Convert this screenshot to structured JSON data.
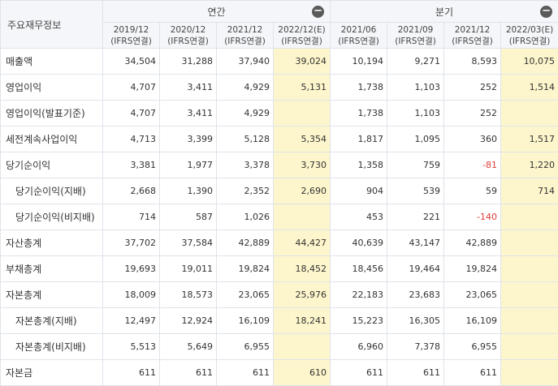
{
  "table": {
    "corner_label": "주요재무정보",
    "groups": [
      {
        "label": "연간",
        "collapse_icon": "minus-circle-icon",
        "collapse_symbol": "−"
      },
      {
        "label": "분기",
        "collapse_icon": "minus-circle-icon",
        "collapse_symbol": "−"
      }
    ],
    "columns": [
      {
        "period": "2019/12",
        "basis": "(IFRS연결)"
      },
      {
        "period": "2020/12",
        "basis": "(IFRS연결)"
      },
      {
        "period": "2021/12",
        "basis": "(IFRS연결)"
      },
      {
        "period": "2022/12(E)",
        "basis": "(IFRS연결)"
      },
      {
        "period": "2021/06",
        "basis": "(IFRS연결)"
      },
      {
        "period": "2021/09",
        "basis": "(IFRS연결)"
      },
      {
        "period": "2021/12",
        "basis": "(IFRS연결)"
      },
      {
        "period": "2022/03(E)",
        "basis": "(IFRS연결)"
      }
    ],
    "estimate_columns": [
      3,
      7
    ],
    "colors": {
      "estimate_bg": "#fdf6cc",
      "negative": "#e03c3c",
      "header_bg": "#f4f6f9",
      "border": "#dfe3ea"
    },
    "rows": [
      {
        "label": "매출액",
        "sub": false,
        "values": [
          "34,504",
          "31,288",
          "37,940",
          "39,024",
          "10,194",
          "9,271",
          "8,593",
          "10,075"
        ]
      },
      {
        "label": "영업이익",
        "sub": false,
        "values": [
          "4,707",
          "3,411",
          "4,929",
          "5,131",
          "1,738",
          "1,103",
          "252",
          "1,514"
        ]
      },
      {
        "label": "영업이익(발표기준)",
        "sub": false,
        "values": [
          "4,707",
          "3,411",
          "4,929",
          "",
          "1,738",
          "1,103",
          "252",
          ""
        ]
      },
      {
        "label": "세전계속사업이익",
        "sub": false,
        "values": [
          "4,713",
          "3,399",
          "5,128",
          "5,354",
          "1,817",
          "1,095",
          "360",
          "1,517"
        ]
      },
      {
        "label": "당기순이익",
        "sub": false,
        "values": [
          "3,381",
          "1,977",
          "3,378",
          "3,730",
          "1,358",
          "759",
          "-81",
          "1,220"
        ]
      },
      {
        "label": "당기순이익(지배)",
        "sub": true,
        "values": [
          "2,668",
          "1,390",
          "2,352",
          "2,690",
          "904",
          "539",
          "59",
          "714"
        ]
      },
      {
        "label": "당기순이익(비지배)",
        "sub": true,
        "values": [
          "714",
          "587",
          "1,026",
          "",
          "453",
          "221",
          "-140",
          ""
        ]
      },
      {
        "label": "자산총계",
        "sub": false,
        "values": [
          "37,702",
          "37,584",
          "42,889",
          "44,427",
          "40,639",
          "43,147",
          "42,889",
          ""
        ]
      },
      {
        "label": "부채총계",
        "sub": false,
        "values": [
          "19,693",
          "19,011",
          "19,824",
          "18,452",
          "18,456",
          "19,464",
          "19,824",
          ""
        ]
      },
      {
        "label": "자본총계",
        "sub": false,
        "values": [
          "18,009",
          "18,573",
          "23,065",
          "25,976",
          "22,183",
          "23,683",
          "23,065",
          ""
        ]
      },
      {
        "label": "자본총계(지배)",
        "sub": true,
        "values": [
          "12,497",
          "12,924",
          "16,109",
          "18,241",
          "15,223",
          "16,305",
          "16,109",
          ""
        ]
      },
      {
        "label": "자본총계(비지배)",
        "sub": true,
        "values": [
          "5,513",
          "5,649",
          "6,955",
          "",
          "6,960",
          "7,378",
          "6,955",
          ""
        ]
      },
      {
        "label": "자본금",
        "sub": false,
        "values": [
          "611",
          "611",
          "611",
          "610",
          "611",
          "611",
          "611",
          ""
        ]
      }
    ]
  }
}
